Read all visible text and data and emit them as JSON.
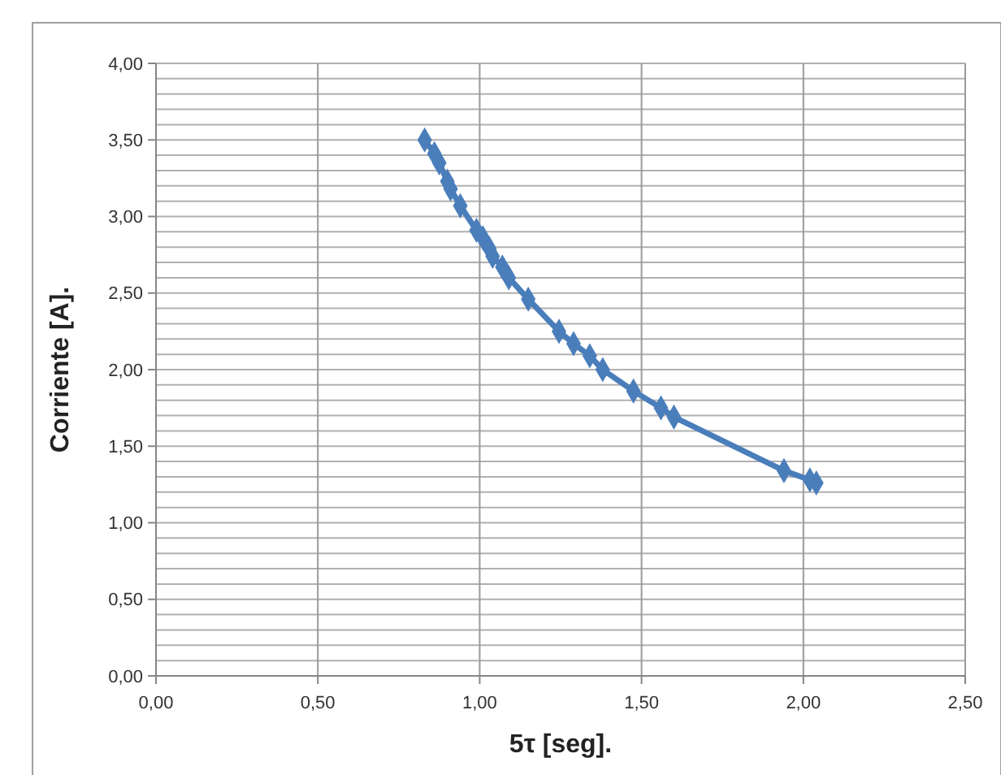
{
  "chart_data": {
    "type": "line",
    "xlabel": "5τ [seg].",
    "ylabel": "Corriente [A].",
    "x": [
      0.83,
      0.86,
      0.875,
      0.9,
      0.91,
      0.94,
      0.99,
      1.01,
      1.03,
      1.04,
      1.07,
      1.09,
      1.15,
      1.245,
      1.29,
      1.34,
      1.38,
      1.475,
      1.56,
      1.6,
      1.94,
      2.02,
      2.04
    ],
    "series": [
      {
        "color": "#4a7ebb",
        "values": [
          3.5,
          3.41,
          3.35,
          3.23,
          3.18,
          3.07,
          2.91,
          2.86,
          2.79,
          2.74,
          2.67,
          2.6,
          2.46,
          2.25,
          2.17,
          2.09,
          2.0,
          1.86,
          1.75,
          1.69,
          1.34,
          1.28,
          1.26
        ]
      }
    ],
    "xlim": [
      0,
      2.5
    ],
    "ylim": [
      0,
      4
    ],
    "xticks": [
      {
        "value": 0,
        "label": "0,00"
      },
      {
        "value": 0.5,
        "label": "0,50"
      },
      {
        "value": 1,
        "label": "1,00"
      },
      {
        "value": 1.5,
        "label": "1,50"
      },
      {
        "value": 2,
        "label": "2,00"
      },
      {
        "value": 2.5,
        "label": "2,50"
      }
    ],
    "yticks": [
      {
        "value": 0,
        "label": "0,00"
      },
      {
        "value": 0.1,
        "label": null
      },
      {
        "value": 0.2,
        "label": null
      },
      {
        "value": 0.3,
        "label": null
      },
      {
        "value": 0.4,
        "label": null
      },
      {
        "value": 0.5,
        "label": "0,50"
      },
      {
        "value": 0.6,
        "label": null
      },
      {
        "value": 0.7,
        "label": null
      },
      {
        "value": 0.8,
        "label": null
      },
      {
        "value": 0.9,
        "label": null
      },
      {
        "value": 1,
        "label": "1,00"
      },
      {
        "value": 1.1,
        "label": null
      },
      {
        "value": 1.2,
        "label": null
      },
      {
        "value": 1.3,
        "label": null
      },
      {
        "value": 1.4,
        "label": null
      },
      {
        "value": 1.5,
        "label": "1,50"
      },
      {
        "value": 1.6,
        "label": null
      },
      {
        "value": 1.7,
        "label": null
      },
      {
        "value": 1.8,
        "label": null
      },
      {
        "value": 1.9,
        "label": null
      },
      {
        "value": 2,
        "label": "2,00"
      },
      {
        "value": 2.1,
        "label": null
      },
      {
        "value": 2.2,
        "label": null
      },
      {
        "value": 2.3,
        "label": null
      },
      {
        "value": 2.4,
        "label": null
      },
      {
        "value": 2.5,
        "label": "2,50"
      },
      {
        "value": 2.6,
        "label": null
      },
      {
        "value": 2.7,
        "label": null
      },
      {
        "value": 2.8,
        "label": null
      },
      {
        "value": 2.9,
        "label": null
      },
      {
        "value": 3,
        "label": "3,00"
      },
      {
        "value": 3.1,
        "label": null
      },
      {
        "value": 3.2,
        "label": null
      },
      {
        "value": 3.3,
        "label": null
      },
      {
        "value": 3.4,
        "label": null
      },
      {
        "value": 3.5,
        "label": "3,50"
      },
      {
        "value": 3.6,
        "label": null
      },
      {
        "value": 3.7,
        "label": null
      },
      {
        "value": 3.8,
        "label": null
      },
      {
        "value": 3.9,
        "label": null
      },
      {
        "value": 4,
        "label": "4,00"
      }
    ],
    "grid": true,
    "marker": "diamond",
    "line_style": "solid"
  }
}
